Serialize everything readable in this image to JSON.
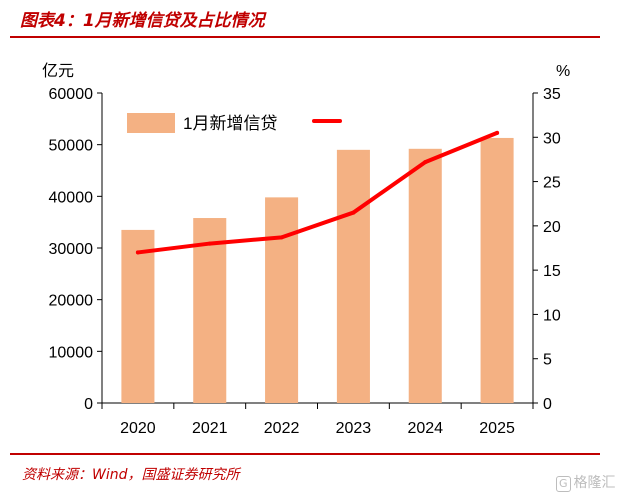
{
  "header": {
    "title": "图表4：1月新增信贷及占比情况"
  },
  "footer": {
    "source": "资料来源：Wind，国盛证券研究所"
  },
  "watermark": {
    "glyph": "G",
    "text": "格隆汇"
  },
  "colors": {
    "accent": "#c00000",
    "bar": "#f4b183",
    "line": "#ff0000",
    "axis": "#000000"
  },
  "chart_data": {
    "type": "bar",
    "categories": [
      "2020",
      "2021",
      "2022",
      "2023",
      "2024",
      "2025"
    ],
    "series": [
      {
        "name": "1月新增信贷",
        "type": "bar",
        "axis": "left",
        "values": [
          33500,
          35800,
          39800,
          49000,
          49200,
          51300
        ]
      },
      {
        "type": "line",
        "axis": "right",
        "values": [
          17.0,
          18.0,
          18.7,
          21.5,
          27.2,
          30.5
        ]
      }
    ],
    "y_left": {
      "unit_label": "亿元",
      "min": 0,
      "max": 60000,
      "ticks": [
        0,
        10000,
        20000,
        30000,
        40000,
        50000,
        60000
      ]
    },
    "y_right": {
      "unit_label": "%",
      "min": 0,
      "max": 35,
      "ticks": [
        0,
        5,
        10,
        15,
        20,
        25,
        30,
        35
      ]
    },
    "legend": {
      "placement": "top-left"
    },
    "grid": false
  }
}
